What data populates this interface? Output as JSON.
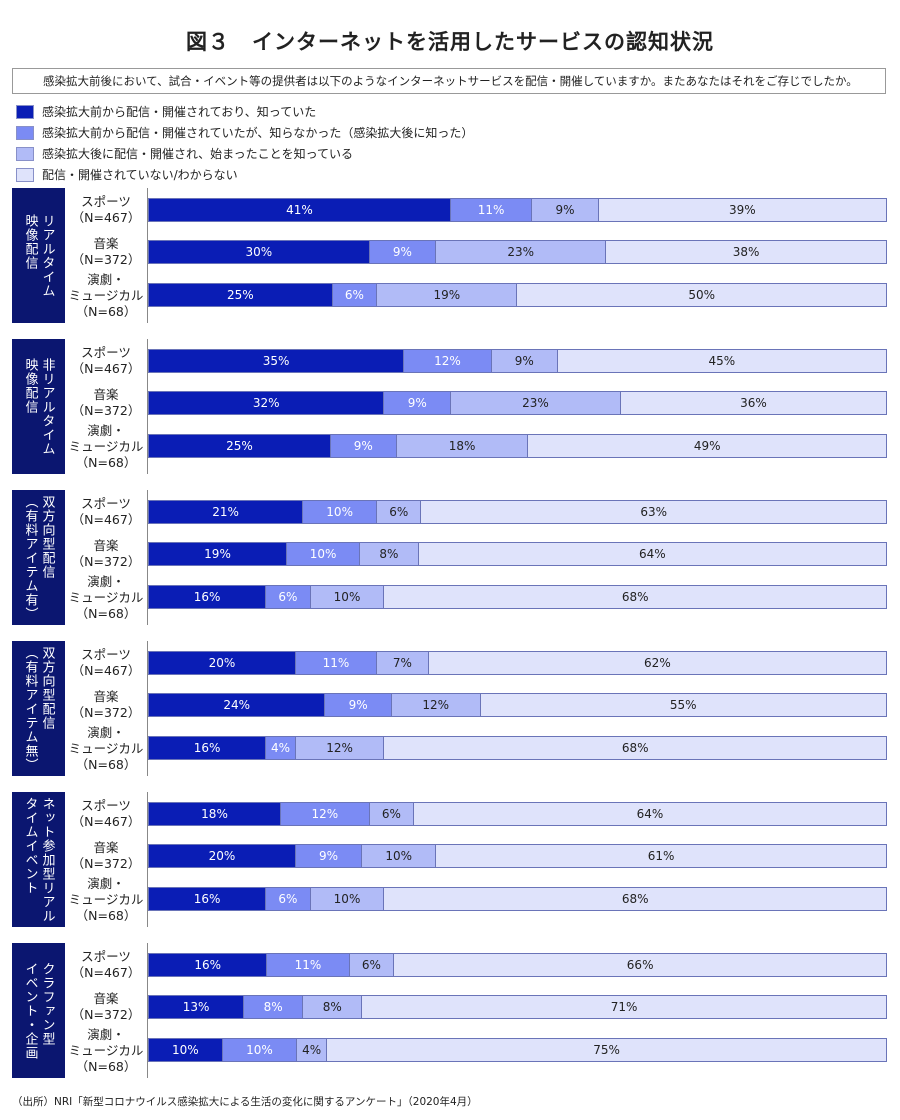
{
  "chart_data": {
    "type": "bar",
    "stacked": "horizontal-100%",
    "title": "図３　インターネットを活用したサービスの認知状況",
    "question": "感染拡大前後において、試合・イベント等の提供者は以下のようなインターネットサービスを配信・開催していますか。またあなたはそれをご存じでしたか。",
    "legend": [
      {
        "label": "感染拡大前から配信・開催されており、知っていた",
        "color": "#0a1db5"
      },
      {
        "label": "感染拡大前から配信・開催されていたが、知らなかった（感染拡大後に知った）",
        "color": "#7b8bf4"
      },
      {
        "label": "感染拡大後に配信・開催され、始まったことを知っている",
        "color": "#b1bbf7"
      },
      {
        "label": "配信・開催されていない/わからない",
        "color": "#dfe3fb"
      }
    ],
    "text_colors": [
      "#ffffff",
      "#ffffff",
      "#222222",
      "#222222"
    ],
    "row_labels": [
      "スポーツ\n（N=467）",
      "音楽\n（N=372）",
      "演劇・\nミュージカル\n（N=68）"
    ],
    "groups": [
      {
        "name": "リアルタイム\n映像配信",
        "rows": [
          [
            41,
            11,
            9,
            39
          ],
          [
            30,
            9,
            23,
            38
          ],
          [
            25,
            6,
            19,
            50
          ]
        ]
      },
      {
        "name": "非リアルタイム\n映像配信",
        "rows": [
          [
            35,
            12,
            9,
            45
          ],
          [
            32,
            9,
            23,
            36
          ],
          [
            25,
            9,
            18,
            49
          ]
        ]
      },
      {
        "name": "双方向型配信\n（有料アイテム有）",
        "rows": [
          [
            21,
            10,
            6,
            63
          ],
          [
            19,
            10,
            8,
            64
          ],
          [
            16,
            6,
            10,
            68
          ]
        ]
      },
      {
        "name": "双方向型配信\n（有料アイテム無）",
        "rows": [
          [
            20,
            11,
            7,
            62
          ],
          [
            24,
            9,
            12,
            55
          ],
          [
            16,
            4,
            12,
            68
          ]
        ]
      },
      {
        "name": "ネット参加型リアル\nタイムイベント",
        "rows": [
          [
            18,
            12,
            6,
            64
          ],
          [
            20,
            9,
            10,
            61
          ],
          [
            16,
            6,
            10,
            68
          ]
        ]
      },
      {
        "name": "クラファン型\nイベント・企画",
        "rows": [
          [
            16,
            11,
            6,
            66
          ],
          [
            13,
            8,
            8,
            71
          ],
          [
            10,
            10,
            4,
            75
          ]
        ]
      }
    ],
    "source": "（出所）NRI「新型コロナウイルス感染拡大による生活の変化に関するアンケート」（2020年4月）"
  }
}
